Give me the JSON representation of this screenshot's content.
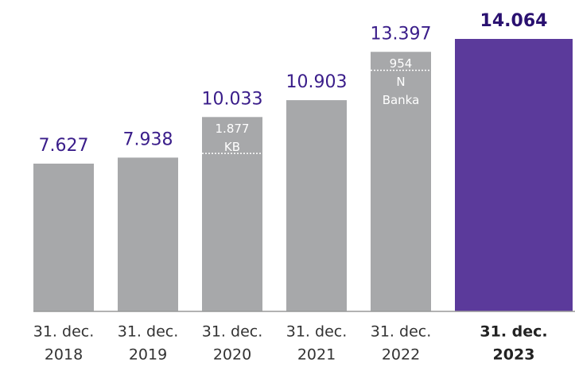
{
  "chart_data": {
    "type": "bar",
    "categories": [
      [
        "31. dec.",
        "2018"
      ],
      [
        "31. dec.",
        "2019"
      ],
      [
        "31. dec.",
        "2020"
      ],
      [
        "31. dec.",
        "2021"
      ],
      [
        "31. dec.",
        "2022"
      ],
      [
        "31. dec.",
        "2023"
      ]
    ],
    "values": [
      7627,
      7938,
      10033,
      10903,
      13397,
      14064
    ],
    "value_labels": [
      "7.627",
      "7.938",
      "10.033",
      "10.903",
      "13.397",
      "14.064"
    ],
    "colors": [
      "#a7a8aa",
      "#a7a8aa",
      "#a7a8aa",
      "#a7a8aa",
      "#a7a8aa",
      "#5b3a9b"
    ],
    "highlight": 5,
    "annotations": [
      null,
      null,
      {
        "value": 1877,
        "value_label": "1.877",
        "label": [
          "KB"
        ]
      },
      null,
      {
        "value": 954,
        "value_label": "954",
        "label": [
          "N",
          "Banka"
        ]
      },
      null
    ]
  }
}
